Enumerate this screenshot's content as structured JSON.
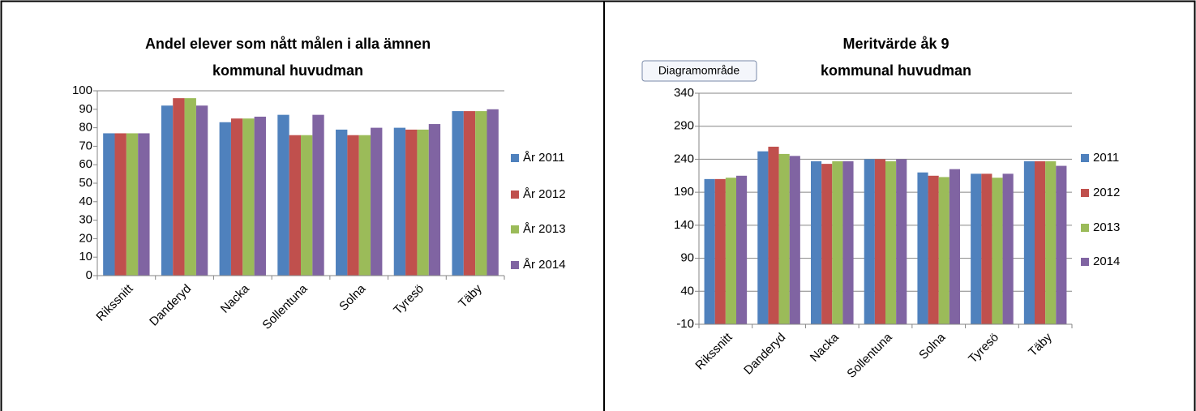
{
  "chart_data": [
    {
      "type": "bar",
      "title": "Andel elever som nått målen i alla ämnen",
      "subtitle": "kommunal huvudman",
      "categories": [
        "Rikssnitt",
        "Danderyd",
        "Nacka",
        "Sollentuna",
        "Solna",
        "Tyresö",
        "Täby"
      ],
      "series": [
        {
          "name": "År 2011",
          "color": "#4f81bd",
          "values": [
            77,
            92,
            83,
            87,
            79,
            80,
            89
          ]
        },
        {
          "name": "År 2012",
          "color": "#c0504d",
          "values": [
            77,
            96,
            85,
            76,
            76,
            79,
            89
          ]
        },
        {
          "name": "År 2013",
          "color": "#9bbb59",
          "values": [
            77,
            96,
            85,
            76,
            76,
            79,
            89
          ]
        },
        {
          "name": "År 2014",
          "color": "#8064a2",
          "values": [
            77,
            92,
            86,
            87,
            80,
            82,
            90
          ]
        }
      ],
      "ylim": [
        0,
        100
      ],
      "yticks": [
        0,
        10,
        20,
        30,
        40,
        50,
        60,
        70,
        80,
        90,
        100
      ],
      "grid": false,
      "legend": "right"
    },
    {
      "type": "bar",
      "title": "Meritvärde åk 9",
      "subtitle": "kommunal huvudman",
      "tooltip": "Diagramområde",
      "categories": [
        "Rikssnitt",
        "Danderyd",
        "Nacka",
        "Sollentuna",
        "Solna",
        "Tyresö",
        "Täby"
      ],
      "series": [
        {
          "name": "2011",
          "color": "#4f81bd",
          "values": [
            210,
            252,
            237,
            240,
            220,
            218,
            237
          ]
        },
        {
          "name": "2012",
          "color": "#c0504d",
          "values": [
            210,
            259,
            233,
            240,
            215,
            218,
            237
          ]
        },
        {
          "name": "2013",
          "color": "#9bbb59",
          "values": [
            212,
            248,
            237,
            237,
            213,
            212,
            237
          ]
        },
        {
          "name": "2014",
          "color": "#8064a2",
          "values": [
            215,
            245,
            237,
            240,
            225,
            218,
            230
          ]
        }
      ],
      "ylim": [
        -10,
        340
      ],
      "yticks": [
        -10,
        40,
        90,
        140,
        190,
        240,
        290,
        340
      ],
      "grid": true,
      "legend": "right"
    }
  ]
}
